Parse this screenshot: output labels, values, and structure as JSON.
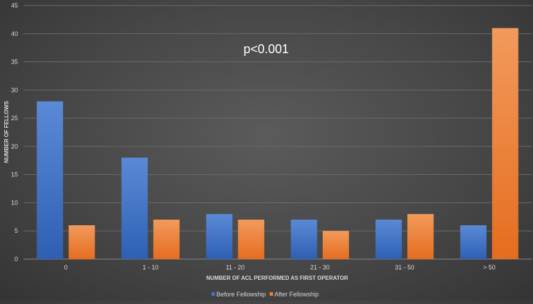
{
  "chart_data": {
    "type": "bar",
    "categories": [
      "0",
      "1 - 10",
      "11 - 20",
      "21 - 30",
      "31 - 50",
      "> 50"
    ],
    "series": [
      {
        "name": "Before Fellowship",
        "values": [
          28,
          18,
          8,
          7,
          7,
          6
        ],
        "color": "#4472c4"
      },
      {
        "name": "After Fellowship",
        "values": [
          6,
          7,
          7,
          5,
          8,
          41
        ],
        "color": "#ed7d31"
      }
    ],
    "xlabel": "NUMBER OF ACL PERFORMED AS FIRST OPERATOR",
    "ylabel": "NUMBER OF FELLOWS",
    "ylim": [
      0,
      45
    ],
    "yticks": [
      0,
      5,
      10,
      15,
      20,
      25,
      30,
      35,
      40,
      45
    ],
    "annotation": "p<0.001",
    "grid": true,
    "legend_position": "bottom"
  }
}
